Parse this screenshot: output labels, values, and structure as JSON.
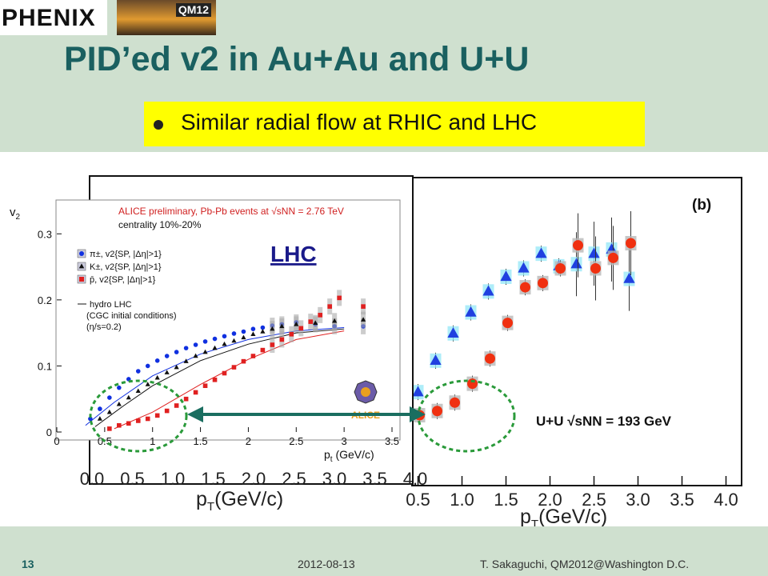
{
  "header": {
    "logo_text": "PHENIX",
    "conference_badge": "QM12",
    "title": "PID’ed v2 in Au+Au and U+U"
  },
  "bullet": {
    "text": "Similar radial flow at RHIC and LHC"
  },
  "annotations": {
    "lhc_label": "LHC",
    "alice_label": "ALICE"
  },
  "footer": {
    "slide_number": "13",
    "date": "2012-08-13",
    "author": "T. Sakaguchi, QM2012@Washington D.C."
  },
  "colors": {
    "title": "#1a6060",
    "bullet_bg": "#ffff00",
    "pion": "#1030e0",
    "kaon": "#111111",
    "proton": "#e02020",
    "arrow": "#1a6e60"
  },
  "chart_data": [
    {
      "type": "scatter",
      "panel": "left-inset",
      "title": "ALICE preliminary, Pb-Pb events at √sNN = 2.76 TeV",
      "subtitle": "centrality 10%-20%",
      "xlabel": "p",
      "xlabel_sub": "t",
      "xlabel_unit": "(GeV/c)",
      "ylabel": "v",
      "ylabel_sub": "2",
      "xlim": [
        0,
        3.5
      ],
      "ylim": [
        0,
        0.35
      ],
      "x_ticks": [
        "0",
        "0.5",
        "1",
        "1.5",
        "2",
        "2.5",
        "3",
        "3.5"
      ],
      "y_ticks": [
        "0",
        "0.1",
        "0.2",
        "0.3"
      ],
      "legend": [
        "π±, v2{SP, |Δη|>1}",
        "K±, v2{SP, |Δη|>1}",
        "p̄, v2{SP, |Δη|>1}",
        "hydro LHC",
        "(CGC initial conditions)",
        "(η/s=0.2)"
      ],
      "series": [
        {
          "name": "π±, v2{SP, |Δη|>1}",
          "color": "#1030e0",
          "marker": "circle",
          "x": [
            0.35,
            0.45,
            0.55,
            0.65,
            0.75,
            0.85,
            0.95,
            1.05,
            1.15,
            1.25,
            1.35,
            1.45,
            1.55,
            1.65,
            1.75,
            1.85,
            1.95,
            2.05,
            2.15,
            2.25,
            2.35,
            2.5,
            2.7,
            2.9,
            3.2
          ],
          "y": [
            0.02,
            0.035,
            0.052,
            0.067,
            0.08,
            0.092,
            0.1,
            0.108,
            0.115,
            0.121,
            0.127,
            0.132,
            0.137,
            0.141,
            0.145,
            0.149,
            0.152,
            0.156,
            0.158,
            0.161,
            0.163,
            0.166,
            0.163,
            0.16,
            0.16
          ]
        },
        {
          "name": "K±, v2{SP, |Δη|>1}",
          "color": "#111111",
          "marker": "triangle",
          "x": [
            0.45,
            0.55,
            0.65,
            0.75,
            0.85,
            0.95,
            1.05,
            1.15,
            1.25,
            1.35,
            1.45,
            1.55,
            1.65,
            1.75,
            1.85,
            1.95,
            2.05,
            2.15,
            2.25,
            2.35,
            2.5,
            2.7,
            2.9,
            3.2
          ],
          "y": [
            0.02,
            0.03,
            0.042,
            0.052,
            0.062,
            0.072,
            0.082,
            0.09,
            0.098,
            0.107,
            0.115,
            0.121,
            0.127,
            0.133,
            0.138,
            0.143,
            0.148,
            0.152,
            0.156,
            0.16,
            0.163,
            0.165,
            0.168,
            0.17
          ]
        },
        {
          "name": "p̄, v2{SP, |Δη|>1}",
          "color": "#e02020",
          "marker": "square",
          "x": [
            0.55,
            0.65,
            0.75,
            0.85,
            0.95,
            1.05,
            1.15,
            1.25,
            1.35,
            1.45,
            1.55,
            1.65,
            1.75,
            1.85,
            1.95,
            2.05,
            2.15,
            2.25,
            2.35,
            2.45,
            2.55,
            2.65,
            2.75,
            2.85,
            2.95,
            3.2
          ],
          "y": [
            0.005,
            0.01,
            0.013,
            0.017,
            0.02,
            0.025,
            0.032,
            0.04,
            0.05,
            0.06,
            0.07,
            0.079,
            0.089,
            0.098,
            0.107,
            0.115,
            0.124,
            0.132,
            0.14,
            0.148,
            0.157,
            0.167,
            0.177,
            0.19,
            0.203,
            0.19
          ]
        }
      ]
    },
    {
      "type": "scatter",
      "panel": "right-b",
      "title": "(b)",
      "annotation": "U+U √sNN = 193 GeV",
      "xlabel": "p",
      "xlabel_sub": "T",
      "xlabel_unit": "(GeV/c)",
      "xlim": [
        0.25,
        4.25
      ],
      "ylim": [
        0,
        0.14
      ],
      "x_ticks": [
        "0.5",
        "1.0",
        "1.5",
        "2.0",
        "2.5",
        "3.0",
        "3.5",
        "4.0"
      ],
      "series": [
        {
          "color": "#2040e0",
          "marker": "triangle",
          "x": [
            0.5,
            0.7,
            0.9,
            1.1,
            1.3,
            1.5,
            1.7,
            1.9,
            2.1,
            2.3,
            2.5,
            2.7,
            2.9
          ],
          "y": [
            0.04,
            0.055,
            0.068,
            0.078,
            0.088,
            0.095,
            0.099,
            0.106,
            0.1,
            0.101,
            0.106,
            0.108,
            0.094
          ]
        },
        {
          "color": "#f03010",
          "marker": "circle",
          "x": [
            0.5,
            0.7,
            0.9,
            1.1,
            1.3,
            1.5,
            1.7,
            1.9,
            2.1,
            2.3,
            2.5,
            2.7,
            2.9
          ],
          "y": [
            0.029,
            0.031,
            0.035,
            0.044,
            0.056,
            0.073,
            0.09,
            0.092,
            0.099,
            0.11,
            0.099,
            0.104,
            0.111
          ]
        }
      ]
    }
  ]
}
